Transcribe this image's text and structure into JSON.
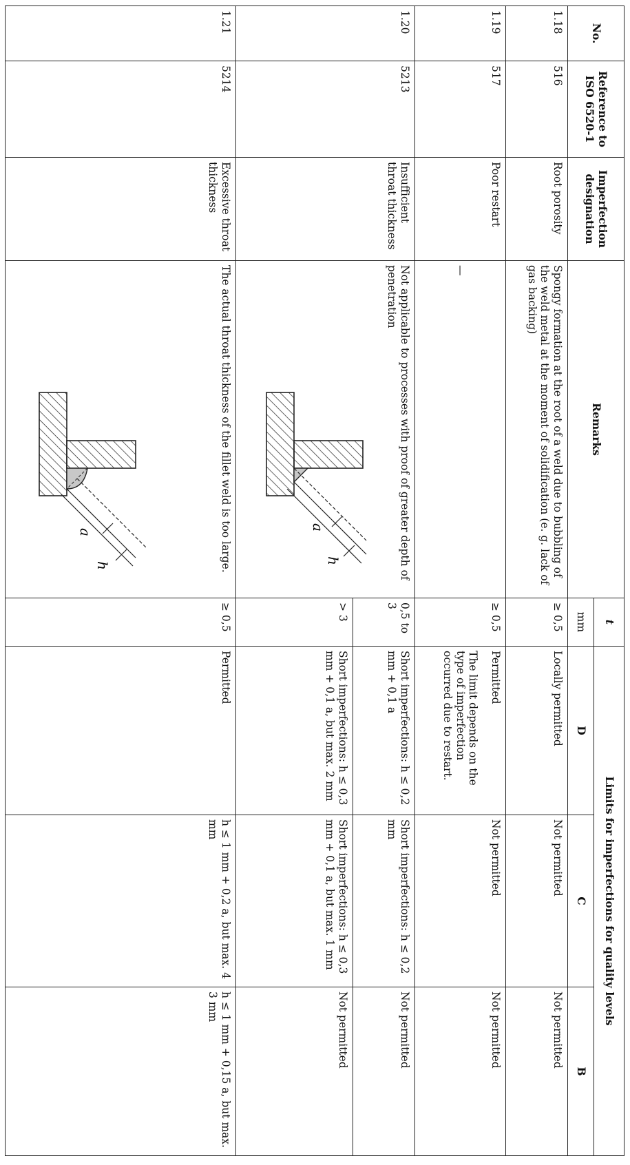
{
  "table": {
    "headers": {
      "no": "No.",
      "reference": "Reference to ISO 6520-1",
      "designation": "Imperfection designation",
      "remarks": "Remarks",
      "t": "t",
      "t_unit": "mm",
      "limits": "Limits for imperfections for quality levels",
      "level_d": "D",
      "level_c": "C",
      "level_b": "B"
    },
    "rows": [
      {
        "no": "1.18",
        "reference": "516",
        "designation": "Root porosity",
        "remarks": "Spongy formation at the root of a weld due to bubbling of the weld metal at the moment of solidification (e. g. lack of gas backing)",
        "t": "≥ 0,5",
        "d": "Locally permitted",
        "c": "Not permitted",
        "b": "Not permitted"
      },
      {
        "no": "1.19",
        "reference": "517",
        "designation": "Poor restart",
        "remarks": "—",
        "t": "≥ 0,5",
        "d": "Permitted",
        "d_note": "The limit depends on the type of imperfection occurred due to restart.",
        "c": "Not permitted",
        "b": "Not permitted"
      },
      {
        "no": "1.20",
        "reference": "5213",
        "designation": "Insufficient throat thickness",
        "remarks": "Not applicable to processes with proof of greater depth of penetration",
        "sub": [
          {
            "t": "0,5 to 3",
            "d": "Short imperfections: h ≤ 0,2 mm + 0,1 a",
            "c": "Short imperfections: h ≤ 0,2 mm",
            "b": "Not permitted"
          },
          {
            "t": "> 3",
            "d": "Short imperfections: h ≤ 0,3 mm + 0,1 a, but max. 2 mm",
            "c": "Short imperfections: h ≤ 0,3 mm + 0,1 a, but max. 1 mm",
            "b": "Not permitted"
          }
        ],
        "fig_labels": {
          "h": "h",
          "a": "a"
        }
      },
      {
        "no": "1.21",
        "reference": "5214",
        "designation": "Excessive throat thickness",
        "remarks": "The actual throat thickness of the fillet weld is too large.",
        "t": "≥ 0,5",
        "d": "Permitted",
        "c": "h ≤ 1 mm + 0,2 a, but max. 4 mm",
        "b": "h ≤ 1 mm + 0,15 a, but max. 3 mm",
        "fig_labels": {
          "h": "h",
          "a": "a"
        }
      }
    ]
  }
}
